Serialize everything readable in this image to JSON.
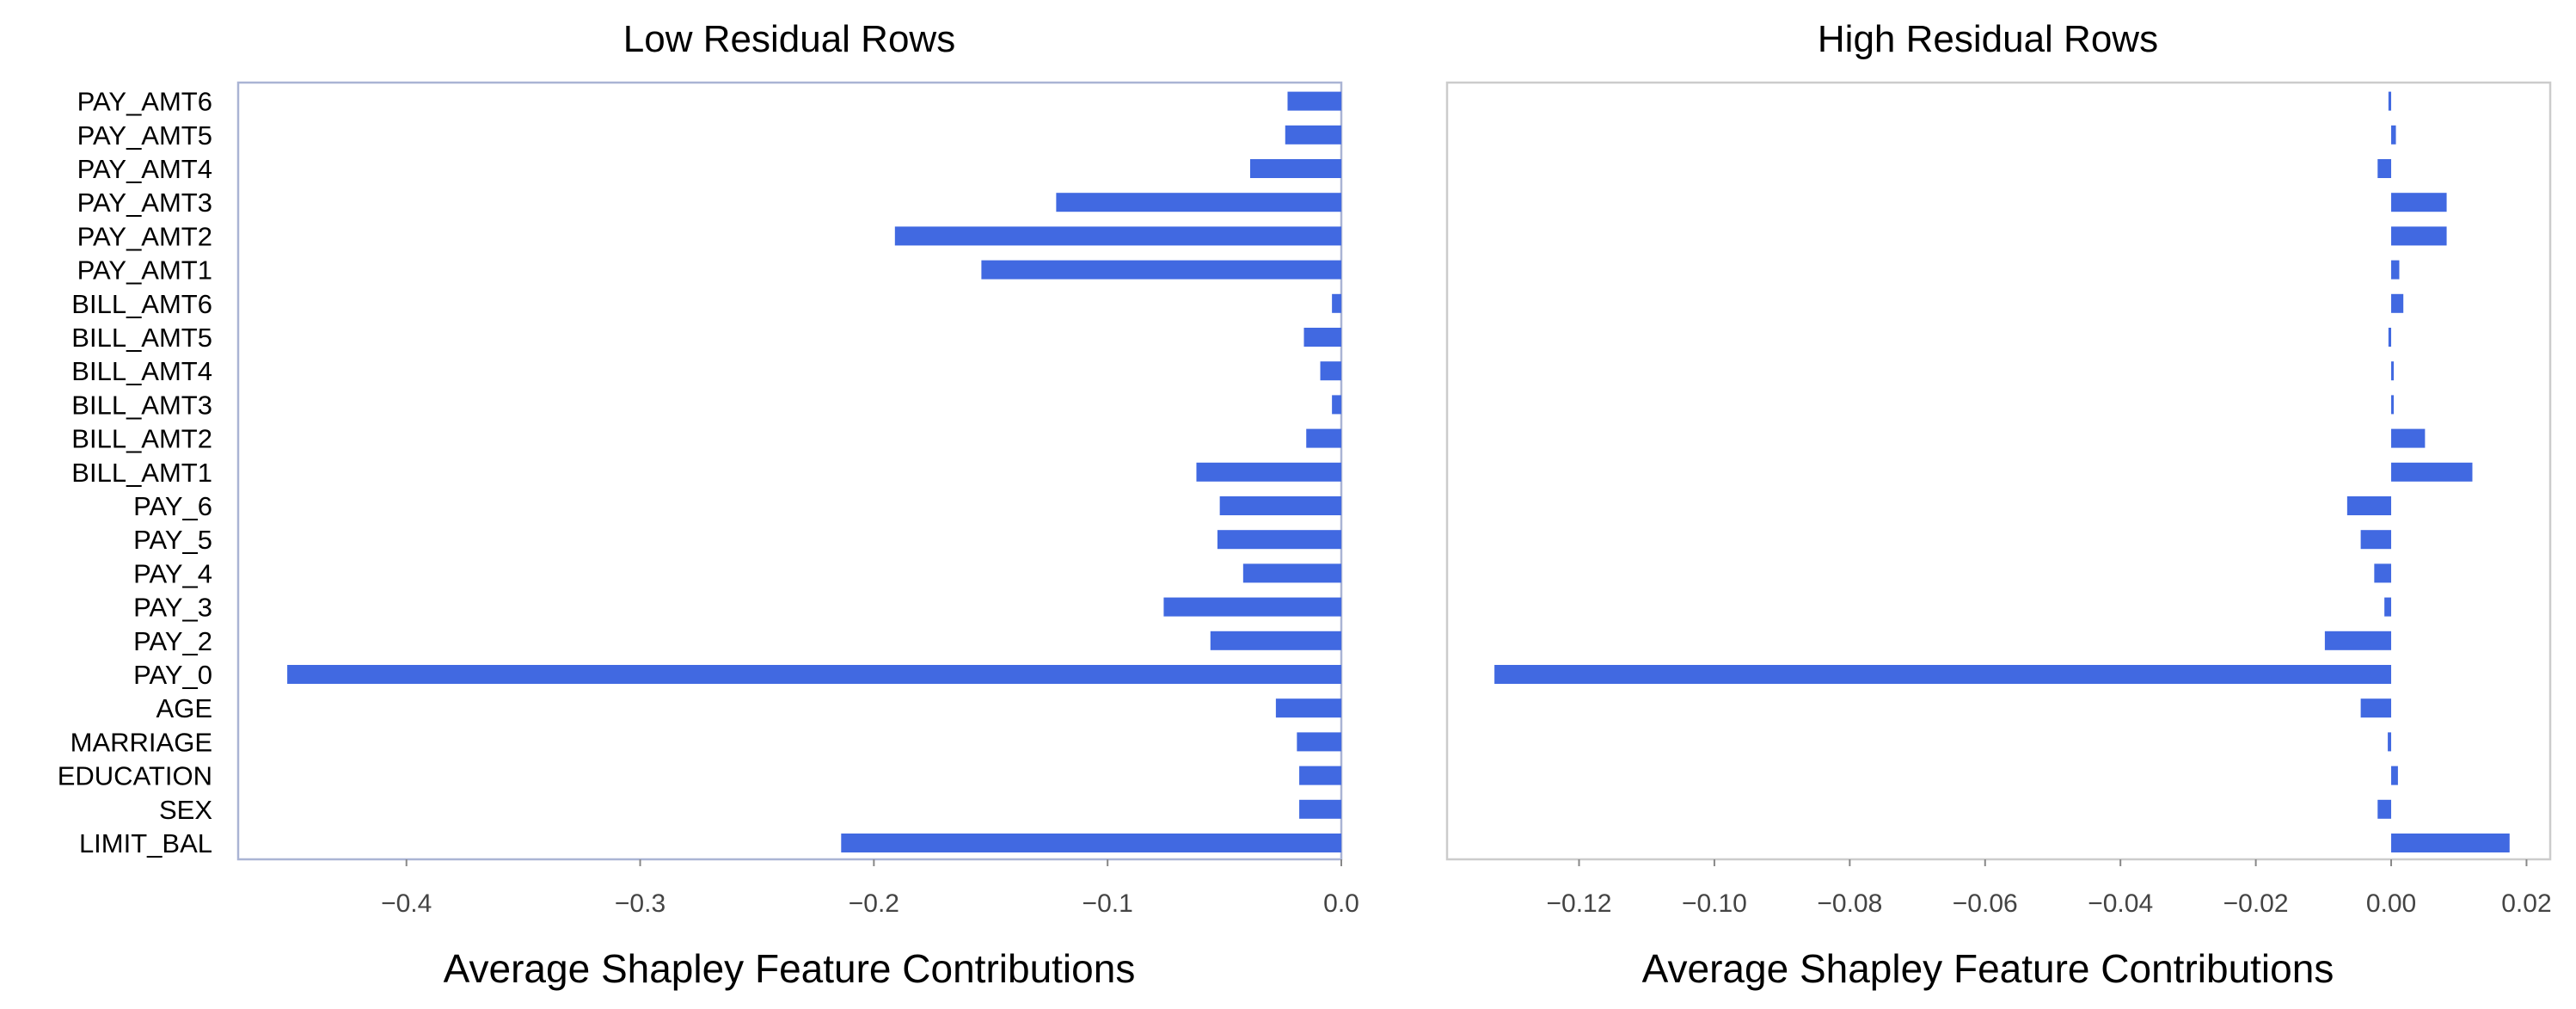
{
  "chart_data": [
    {
      "type": "bar",
      "orientation": "horizontal",
      "title": "Low Residual Rows",
      "xlabel": "Average Shapley Feature Contributions",
      "ylabel": "",
      "categories": [
        "LIMIT_BAL",
        "SEX",
        "EDUCATION",
        "MARRIAGE",
        "AGE",
        "PAY_0",
        "PAY_2",
        "PAY_3",
        "PAY_4",
        "PAY_5",
        "PAY_6",
        "BILL_AMT1",
        "BILL_AMT2",
        "BILL_AMT3",
        "BILL_AMT4",
        "BILL_AMT5",
        "BILL_AMT6",
        "PAY_AMT1",
        "PAY_AMT2",
        "PAY_AMT3",
        "PAY_AMT4",
        "PAY_AMT5",
        "PAY_AMT6"
      ],
      "values": [
        -0.214,
        -0.018,
        -0.018,
        -0.019,
        -0.028,
        -0.451,
        -0.056,
        -0.076,
        -0.042,
        -0.053,
        -0.052,
        -0.062,
        -0.015,
        -0.004,
        -0.009,
        -0.016,
        -0.004,
        -0.154,
        -0.191,
        -0.122,
        -0.039,
        -0.024,
        -0.023
      ],
      "xlim": [
        -0.472,
        0.0
      ],
      "xticks": [
        -0.4,
        -0.3,
        -0.2,
        -0.1,
        0.0
      ],
      "xtick_labels": [
        "−0.4",
        "−0.3",
        "−0.2",
        "−0.1",
        "0.0"
      ],
      "color": "#4169E1",
      "frame_color": "#aab4d4",
      "grid": false,
      "legend": "none"
    },
    {
      "type": "bar",
      "orientation": "horizontal",
      "title": "High Residual Rows",
      "xlabel": "Average Shapley Feature Contributions",
      "ylabel": "",
      "categories": [
        "LIMIT_BAL",
        "SEX",
        "EDUCATION",
        "MARRIAGE",
        "AGE",
        "PAY_0",
        "PAY_2",
        "PAY_3",
        "PAY_4",
        "PAY_5",
        "PAY_6",
        "BILL_AMT1",
        "BILL_AMT2",
        "BILL_AMT3",
        "BILL_AMT4",
        "BILL_AMT5",
        "BILL_AMT6",
        "PAY_AMT1",
        "PAY_AMT2",
        "PAY_AMT3",
        "PAY_AMT4",
        "PAY_AMT5",
        "PAY_AMT6"
      ],
      "values": [
        0.0175,
        -0.002,
        0.001,
        -0.0005,
        -0.0045,
        -0.1325,
        -0.0098,
        -0.001,
        -0.0025,
        -0.0045,
        -0.0065,
        0.012,
        0.005,
        0.0,
        0.0,
        -0.0004,
        0.0018,
        0.0012,
        0.0082,
        0.0082,
        -0.002,
        0.0007,
        -0.0004
      ],
      "xlim": [
        -0.1395,
        0.0235
      ],
      "xticks": [
        -0.12,
        -0.1,
        -0.08,
        -0.06,
        -0.04,
        -0.02,
        0.0,
        0.02
      ],
      "xtick_labels": [
        "−0.12",
        "−0.10",
        "−0.08",
        "−0.06",
        "−0.04",
        "−0.02",
        "0.00",
        "0.02"
      ],
      "color": "#4169E1",
      "frame_color": "#cccccc",
      "grid": false,
      "legend": "none"
    }
  ]
}
